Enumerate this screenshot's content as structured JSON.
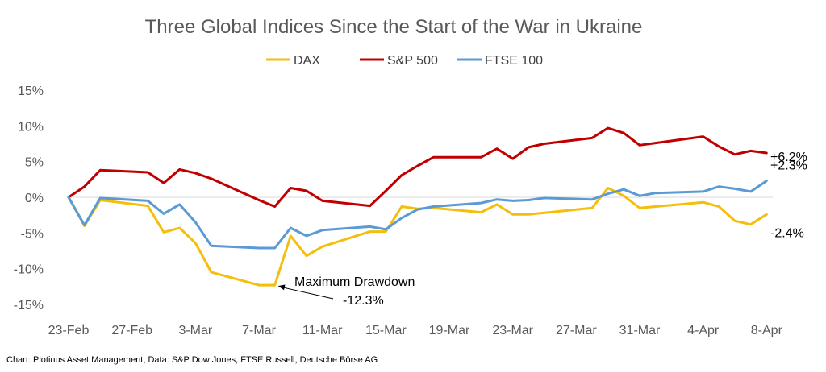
{
  "chart_data": {
    "type": "line",
    "title": "Three Global Indices Since the Start of the War in Ukraine",
    "source": "Chart: Plotinus Asset Management, Data: S&P Dow Jones, FTSE Russell, Deutsche Börse AG",
    "x_tick_labels": [
      "23-Feb",
      "27-Feb",
      "3-Mar",
      "7-Mar",
      "11-Mar",
      "15-Mar",
      "19-Mar",
      "23-Mar",
      "27-Mar",
      "31-Mar",
      "4-Apr",
      "8-Apr"
    ],
    "x_range": [
      "2022-02-23",
      "2022-04-09"
    ],
    "y_range": [
      -15,
      15
    ],
    "y_tick_values": [
      -15,
      -10,
      -5,
      0,
      5,
      10,
      15
    ],
    "y_tick_labels": [
      "-15%",
      "-10%",
      "-5%",
      "0%",
      "5%",
      "10%",
      "15%"
    ],
    "y_unit": "%",
    "legend_position": "top",
    "grid": false,
    "series": [
      {
        "name": "DAX",
        "color": "#F5BE0D",
        "end_label": "-2.4%",
        "points": [
          [
            "2022-02-23",
            0
          ],
          [
            "2022-02-24",
            -4.0
          ],
          [
            "2022-02-25",
            -0.4
          ],
          [
            "2022-02-28",
            -1.2
          ],
          [
            "2022-03-01",
            -4.9
          ],
          [
            "2022-03-02",
            -4.3
          ],
          [
            "2022-03-03",
            -6.4
          ],
          [
            "2022-03-04",
            -10.5
          ],
          [
            "2022-03-07",
            -12.3
          ],
          [
            "2022-03-08",
            -12.3
          ],
          [
            "2022-03-09",
            -5.4
          ],
          [
            "2022-03-10",
            -8.2
          ],
          [
            "2022-03-11",
            -6.9
          ],
          [
            "2022-03-14",
            -4.8
          ],
          [
            "2022-03-15",
            -4.8
          ],
          [
            "2022-03-16",
            -1.3
          ],
          [
            "2022-03-17",
            -1.6
          ],
          [
            "2022-03-18",
            -1.5
          ],
          [
            "2022-03-21",
            -2.1
          ],
          [
            "2022-03-22",
            -1.0
          ],
          [
            "2022-03-23",
            -2.4
          ],
          [
            "2022-03-24",
            -2.4
          ],
          [
            "2022-03-28",
            -1.5
          ],
          [
            "2022-03-29",
            1.3
          ],
          [
            "2022-03-30",
            0.2
          ],
          [
            "2022-03-31",
            -1.5
          ],
          [
            "2022-04-01",
            -1.3
          ],
          [
            "2022-04-04",
            -0.7
          ],
          [
            "2022-04-05",
            -1.3
          ],
          [
            "2022-04-06",
            -3.3
          ],
          [
            "2022-04-07",
            -3.8
          ],
          [
            "2022-04-08",
            -2.4
          ]
        ]
      },
      {
        "name": "S&P 500",
        "color": "#C00000",
        "end_label": "+6.2%",
        "points": [
          [
            "2022-02-23",
            0
          ],
          [
            "2022-02-24",
            1.5
          ],
          [
            "2022-02-25",
            3.8
          ],
          [
            "2022-02-28",
            3.5
          ],
          [
            "2022-03-01",
            2.0
          ],
          [
            "2022-03-02",
            3.9
          ],
          [
            "2022-03-03",
            3.4
          ],
          [
            "2022-03-04",
            2.6
          ],
          [
            "2022-03-07",
            -0.4
          ],
          [
            "2022-03-08",
            -1.3
          ],
          [
            "2022-03-09",
            1.3
          ],
          [
            "2022-03-10",
            0.9
          ],
          [
            "2022-03-11",
            -0.5
          ],
          [
            "2022-03-14",
            -1.2
          ],
          [
            "2022-03-15",
            0.9
          ],
          [
            "2022-03-16",
            3.1
          ],
          [
            "2022-03-17",
            4.4
          ],
          [
            "2022-03-18",
            5.6
          ],
          [
            "2022-03-21",
            5.6
          ],
          [
            "2022-03-22",
            6.8
          ],
          [
            "2022-03-23",
            5.4
          ],
          [
            "2022-03-24",
            7.0
          ],
          [
            "2022-03-25",
            7.5
          ],
          [
            "2022-03-28",
            8.3
          ],
          [
            "2022-03-29",
            9.7
          ],
          [
            "2022-03-30",
            9.0
          ],
          [
            "2022-03-31",
            7.3
          ],
          [
            "2022-04-01",
            7.6
          ],
          [
            "2022-04-04",
            8.5
          ],
          [
            "2022-04-05",
            7.1
          ],
          [
            "2022-04-06",
            6.0
          ],
          [
            "2022-04-07",
            6.5
          ],
          [
            "2022-04-08",
            6.2
          ]
        ]
      },
      {
        "name": "FTSE 100",
        "color": "#5B9BD5",
        "end_label": "+2.3%",
        "points": [
          [
            "2022-02-23",
            0
          ],
          [
            "2022-02-24",
            -3.9
          ],
          [
            "2022-02-25",
            -0.1
          ],
          [
            "2022-02-28",
            -0.5
          ],
          [
            "2022-03-01",
            -2.3
          ],
          [
            "2022-03-02",
            -1.0
          ],
          [
            "2022-03-03",
            -3.5
          ],
          [
            "2022-03-04",
            -6.8
          ],
          [
            "2022-03-07",
            -7.1
          ],
          [
            "2022-03-08",
            -7.1
          ],
          [
            "2022-03-09",
            -4.3
          ],
          [
            "2022-03-10",
            -5.4
          ],
          [
            "2022-03-11",
            -4.6
          ],
          [
            "2022-03-14",
            -4.1
          ],
          [
            "2022-03-15",
            -4.5
          ],
          [
            "2022-03-16",
            -2.9
          ],
          [
            "2022-03-17",
            -1.7
          ],
          [
            "2022-03-18",
            -1.3
          ],
          [
            "2022-03-21",
            -0.8
          ],
          [
            "2022-03-22",
            -0.3
          ],
          [
            "2022-03-23",
            -0.5
          ],
          [
            "2022-03-24",
            -0.4
          ],
          [
            "2022-03-25",
            -0.1
          ],
          [
            "2022-03-28",
            -0.3
          ],
          [
            "2022-03-29",
            0.5
          ],
          [
            "2022-03-30",
            1.1
          ],
          [
            "2022-03-31",
            0.2
          ],
          [
            "2022-04-01",
            0.6
          ],
          [
            "2022-04-04",
            0.8
          ],
          [
            "2022-04-05",
            1.5
          ],
          [
            "2022-04-06",
            1.2
          ],
          [
            "2022-04-07",
            0.8
          ],
          [
            "2022-04-08",
            2.3
          ]
        ]
      }
    ],
    "annotations": [
      {
        "text_line1": "Maximum Drawdown",
        "text_line2": "-12.3%",
        "date": "2022-03-08",
        "value": -12.3
      }
    ]
  }
}
